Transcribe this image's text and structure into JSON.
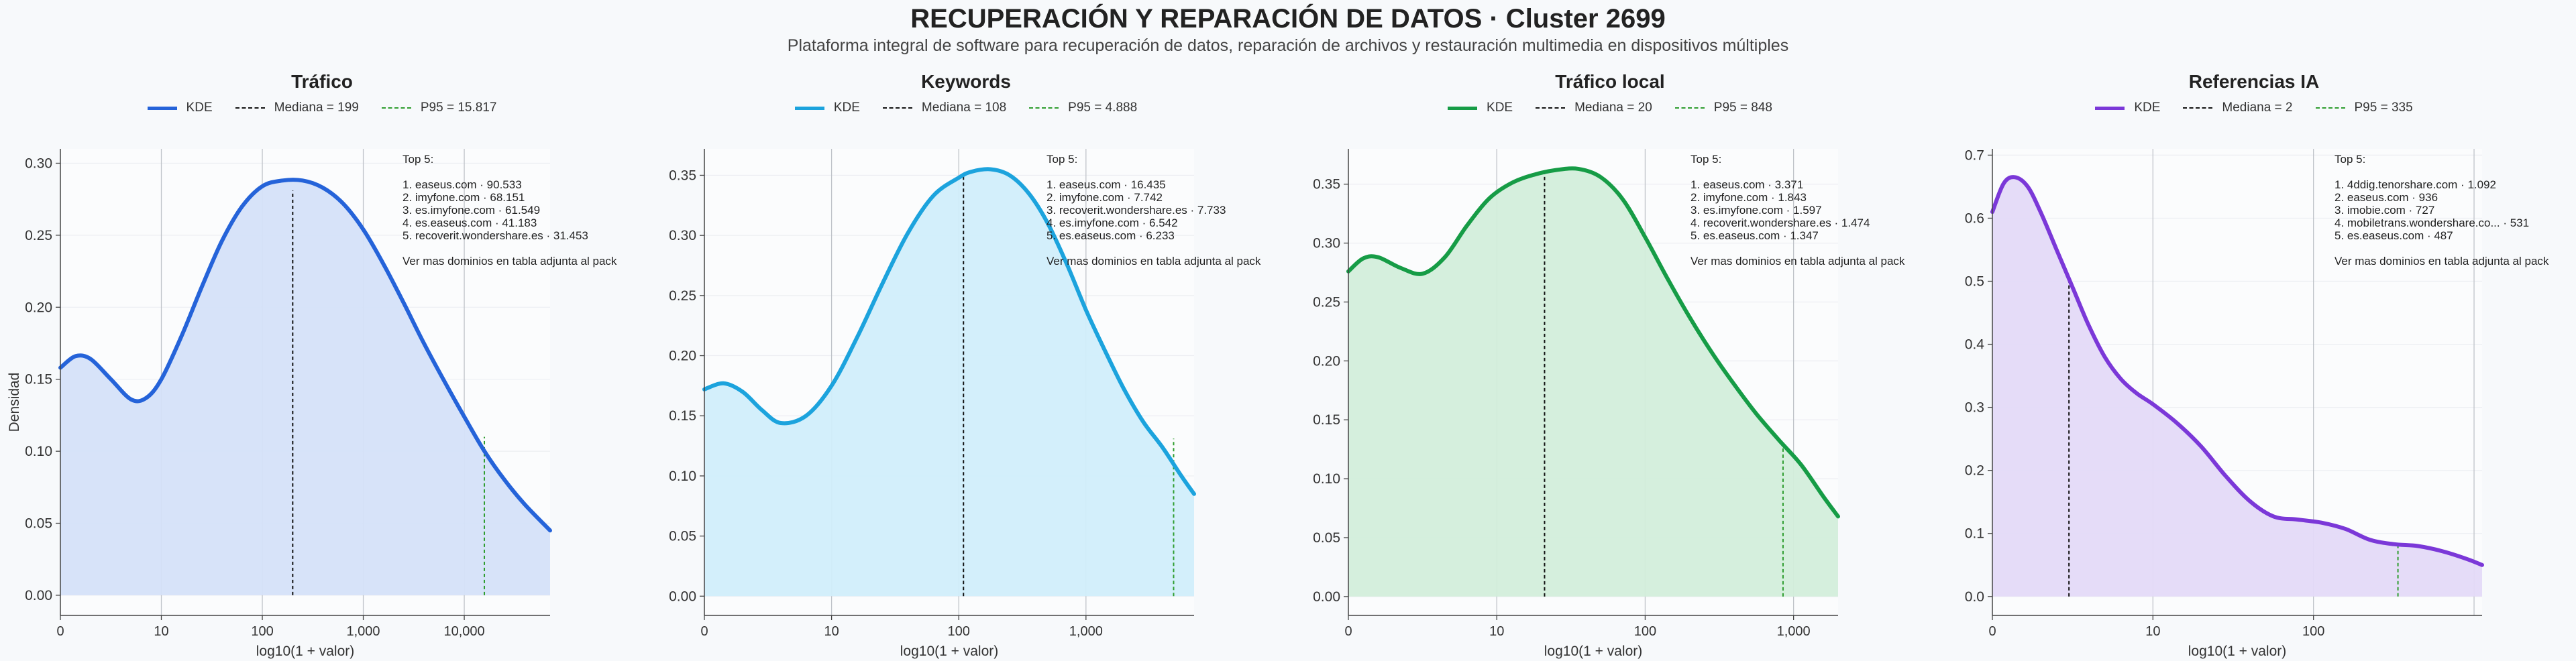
{
  "title": "RECUPERACIÓN Y REPARACIÓN DE DATOS · Cluster 2699",
  "subtitle": "Plataforma integral de software para recuperación de datos, reparación de archivos y restauración multimedia en dispositivos múltiples",
  "ylabel": "Densidad",
  "legend": {
    "kde": "KDE"
  },
  "chart_data": [
    {
      "type": "area",
      "title": "Tráfico",
      "xlabel": "log10(1 + valor)",
      "ylabel": "Densidad",
      "color": "#2563d9",
      "fill": "#d5e1f9",
      "x_scale": "log10(1+value)",
      "xlim": [
        0,
        4.85
      ],
      "ylim": [
        -0.014,
        0.31
      ],
      "x_ticks": [
        0,
        1,
        2,
        3,
        4
      ],
      "x_tick_labels": [
        "0",
        "10",
        "100",
        "1,000",
        "10,000"
      ],
      "y_ticks": [
        0.0,
        0.05,
        0.1,
        0.15,
        0.2,
        0.25,
        0.3
      ],
      "y_tick_labels": [
        "0.00",
        "0.05",
        "0.10",
        "0.15",
        "0.20",
        "0.25",
        "0.30"
      ],
      "x": [
        0,
        0.15,
        0.3,
        0.5,
        0.7,
        0.85,
        1.0,
        1.2,
        1.4,
        1.6,
        1.8,
        2.0,
        2.2,
        2.4,
        2.6,
        2.8,
        3.0,
        3.2,
        3.4,
        3.6,
        3.8,
        4.0,
        4.2,
        4.4,
        4.6,
        4.85
      ],
      "y": [
        0.158,
        0.166,
        0.164,
        0.15,
        0.136,
        0.137,
        0.15,
        0.18,
        0.214,
        0.246,
        0.27,
        0.284,
        0.288,
        0.288,
        0.283,
        0.272,
        0.254,
        0.23,
        0.203,
        0.175,
        0.149,
        0.124,
        0.1,
        0.08,
        0.063,
        0.045
      ],
      "median": {
        "label": "Mediana = 199",
        "x": 2.301,
        "y": 0.281,
        "color": "#111111"
      },
      "p95": {
        "label": "P95 = 15.817",
        "x": 4.199,
        "y": 0.11,
        "color": "#2e9d2e"
      },
      "annotation": {
        "heading": "Top 5:",
        "items": [
          "1. easeus.com · 90.533",
          "2. imyfone.com · 68.151",
          "3. es.imyfone.com · 61.549",
          "4. es.easeus.com · 41.183",
          "5. recoverit.wondershare.es · 31.453"
        ],
        "footer": "Ver mas dominios en tabla adjunta al pack"
      }
    },
    {
      "type": "area",
      "title": "Keywords",
      "xlabel": "log10(1 + valor)",
      "ylabel": "Densidad",
      "color": "#1ca3dd",
      "fill": "#d1eefb",
      "x_scale": "log10(1+value)",
      "xlim": [
        0,
        3.85
      ],
      "ylim": [
        -0.016,
        0.372
      ],
      "x_ticks": [
        0,
        1,
        2,
        3
      ],
      "x_tick_labels": [
        "0",
        "10",
        "100",
        "1,000"
      ],
      "y_ticks": [
        0.0,
        0.05,
        0.1,
        0.15,
        0.2,
        0.25,
        0.3,
        0.35
      ],
      "y_tick_labels": [
        "0.00",
        "0.05",
        "0.10",
        "0.15",
        "0.20",
        "0.25",
        "0.30",
        "0.35"
      ],
      "x": [
        0,
        0.15,
        0.3,
        0.45,
        0.6,
        0.8,
        1.0,
        1.2,
        1.4,
        1.6,
        1.8,
        2.0,
        2.1,
        2.25,
        2.4,
        2.55,
        2.7,
        2.85,
        3.0,
        3.15,
        3.3,
        3.45,
        3.6,
        3.75,
        3.85
      ],
      "y": [
        0.172,
        0.177,
        0.17,
        0.155,
        0.144,
        0.15,
        0.175,
        0.215,
        0.26,
        0.302,
        0.333,
        0.348,
        0.353,
        0.355,
        0.35,
        0.335,
        0.31,
        0.276,
        0.238,
        0.204,
        0.172,
        0.145,
        0.124,
        0.1,
        0.085
      ],
      "median": {
        "label": "Mediana = 108",
        "x": 2.037,
        "y": 0.35,
        "color": "#111111"
      },
      "p95": {
        "label": "P95 = 4.888",
        "x": 3.689,
        "y": 0.131,
        "color": "#2e9d2e"
      },
      "annotation": {
        "heading": "Top 5:",
        "items": [
          "1. easeus.com · 16.435",
          "2. imyfone.com · 7.742",
          "3. recoverit.wondershare.es · 7.733",
          "4. es.imyfone.com · 6.542",
          "5. es.easeus.com · 6.233"
        ],
        "footer": "Ver mas dominios en tabla adjunta al pack"
      }
    },
    {
      "type": "area",
      "title": "Tráfico local",
      "xlabel": "log10(1 + valor)",
      "ylabel": "Densidad",
      "color": "#169c46",
      "fill": "#d3eedb",
      "x_scale": "log10(1+value)",
      "xlim": [
        0,
        3.3
      ],
      "ylim": [
        -0.016,
        0.38
      ],
      "x_ticks": [
        0,
        1,
        2,
        3
      ],
      "x_tick_labels": [
        "0",
        "10",
        "100",
        "1,000"
      ],
      "y_ticks": [
        0.0,
        0.05,
        0.1,
        0.15,
        0.2,
        0.25,
        0.3,
        0.35
      ],
      "y_tick_labels": [
        "0.00",
        "0.05",
        "0.10",
        "0.15",
        "0.20",
        "0.25",
        "0.30",
        "0.35"
      ],
      "x": [
        0,
        0.1,
        0.2,
        0.35,
        0.5,
        0.65,
        0.8,
        0.95,
        1.1,
        1.25,
        1.4,
        1.55,
        1.7,
        1.85,
        2.0,
        2.15,
        2.3,
        2.45,
        2.6,
        2.75,
        2.9,
        3.05,
        3.2,
        3.3
      ],
      "y": [
        0.276,
        0.287,
        0.288,
        0.279,
        0.274,
        0.288,
        0.315,
        0.338,
        0.351,
        0.358,
        0.362,
        0.363,
        0.356,
        0.337,
        0.305,
        0.27,
        0.237,
        0.207,
        0.18,
        0.155,
        0.133,
        0.112,
        0.085,
        0.068
      ],
      "median": {
        "label": "Mediana = 20",
        "x": 1.322,
        "y": 0.36,
        "color": "#111111"
      },
      "p95": {
        "label": "P95 = 848",
        "x": 2.929,
        "y": 0.128,
        "color": "#2e9d2e"
      },
      "annotation": {
        "heading": "Top 5:",
        "items": [
          "1. easeus.com · 3.371",
          "2. imyfone.com · 1.843",
          "3. es.imyfone.com · 1.597",
          "4. recoverit.wondershare.es · 1.474",
          "5. es.easeus.com · 1.347"
        ],
        "footer": "Ver mas dominios en tabla adjunta al pack"
      }
    },
    {
      "type": "area",
      "title": "Referencias IA",
      "xlabel": "log10(1 + valor)",
      "ylabel": "Densidad",
      "color": "#7b38d8",
      "fill": "#e4daf8",
      "x_scale": "log10(1+value)",
      "xlim": [
        0,
        3.05
      ],
      "ylim": [
        -0.03,
        0.71
      ],
      "x_ticks": [
        0,
        1,
        2
      ],
      "x_tick_labels": [
        "0",
        "10",
        "100"
      ],
      "y_ticks": [
        0.0,
        0.1,
        0.2,
        0.3,
        0.4,
        0.5,
        0.6,
        0.7
      ],
      "y_tick_labels": [
        "0.0",
        "0.1",
        "0.2",
        "0.3",
        "0.4",
        "0.5",
        "0.6",
        "0.7"
      ],
      "x": [
        0,
        0.07,
        0.14,
        0.22,
        0.3,
        0.4,
        0.5,
        0.6,
        0.7,
        0.8,
        0.9,
        1.0,
        1.15,
        1.3,
        1.45,
        1.6,
        1.75,
        1.9,
        2.05,
        2.2,
        2.35,
        2.5,
        2.65,
        2.8,
        2.95,
        3.05
      ],
      "y": [
        0.61,
        0.655,
        0.665,
        0.65,
        0.61,
        0.55,
        0.49,
        0.43,
        0.38,
        0.345,
        0.322,
        0.305,
        0.275,
        0.238,
        0.192,
        0.152,
        0.127,
        0.122,
        0.117,
        0.107,
        0.09,
        0.083,
        0.08,
        0.072,
        0.06,
        0.05
      ],
      "median": {
        "label": "Mediana = 2",
        "x": 0.477,
        "y": 0.505,
        "color": "#111111"
      },
      "p95": {
        "label": "P95 = 335",
        "x": 2.526,
        "y": 0.082,
        "color": "#2e9d2e"
      },
      "annotation": {
        "heading": "Top 5:",
        "items": [
          "1. 4ddig.tenorshare.com · 1.092",
          "2. easeus.com · 936",
          "3. imobie.com · 727",
          "4. mobiletrans.wondershare.co... · 531",
          "5. es.easeus.com · 487"
        ],
        "footer": "Ver mas dominios en tabla adjunta al pack"
      }
    }
  ]
}
